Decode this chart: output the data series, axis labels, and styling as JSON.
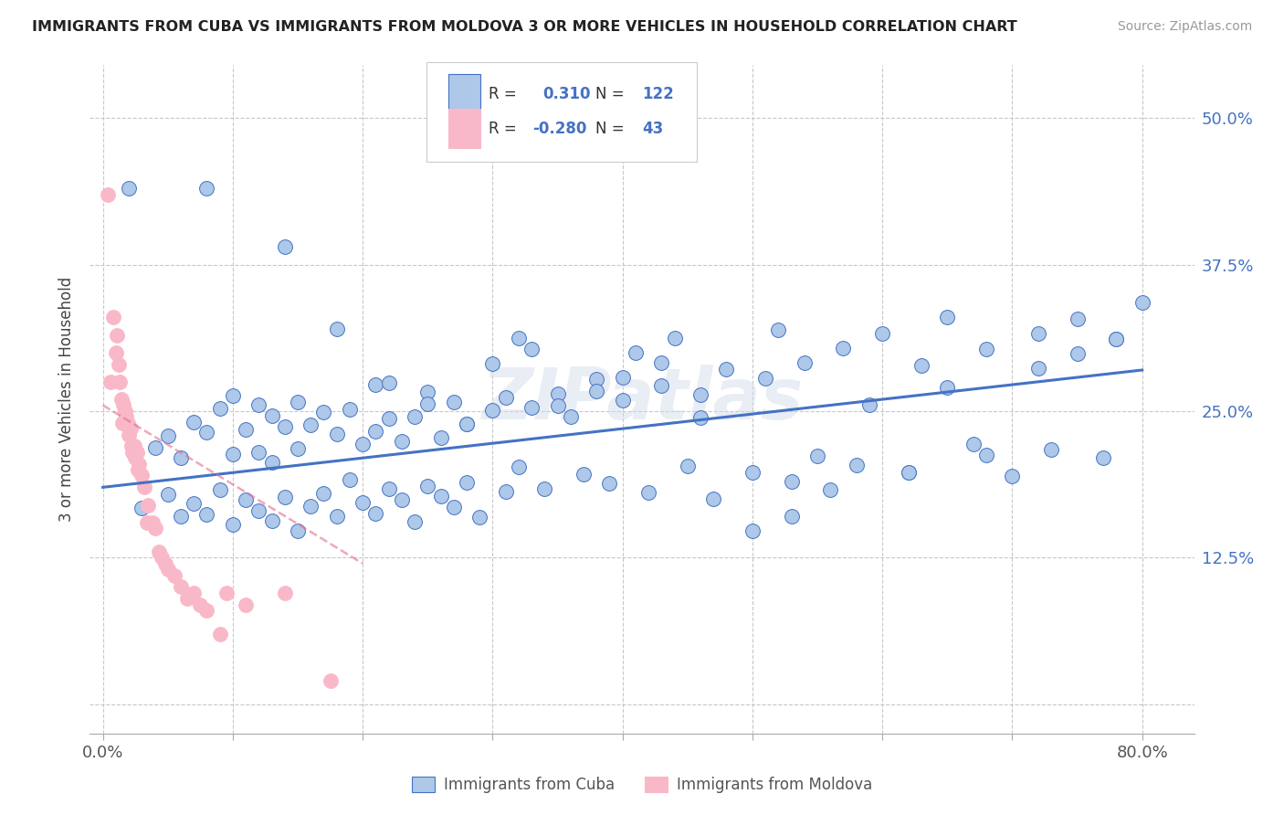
{
  "title": "IMMIGRANTS FROM CUBA VS IMMIGRANTS FROM MOLDOVA 3 OR MORE VEHICLES IN HOUSEHOLD CORRELATION CHART",
  "source": "Source: ZipAtlas.com",
  "ylabel": "3 or more Vehicles in Household",
  "x_ticks": [
    0.0,
    0.1,
    0.2,
    0.3,
    0.4,
    0.5,
    0.6,
    0.7,
    0.8
  ],
  "y_ticks": [
    0.0,
    0.125,
    0.25,
    0.375,
    0.5
  ],
  "y_tick_labels": [
    "",
    "12.5%",
    "25.0%",
    "37.5%",
    "50.0%"
  ],
  "xlim": [
    -0.01,
    0.84
  ],
  "ylim": [
    -0.025,
    0.545
  ],
  "R_cuba": "0.310",
  "N_cuba": "122",
  "R_moldova": "-0.280",
  "N_moldova": "43",
  "cuba_face_color": "#adc8e8",
  "cuba_edge_color": "#4472c4",
  "moldova_face_color": "#f9b8c8",
  "moldova_edge_color": "#f9b8c8",
  "cuba_line_color": "#4472c4",
  "moldova_line_color": "#e07090",
  "watermark": "ZIPatlas",
  "background_color": "#ffffff",
  "grid_color": "#c8c8c8",
  "legend_text_color": "#4472c4",
  "legend_label_color": "#333333"
}
